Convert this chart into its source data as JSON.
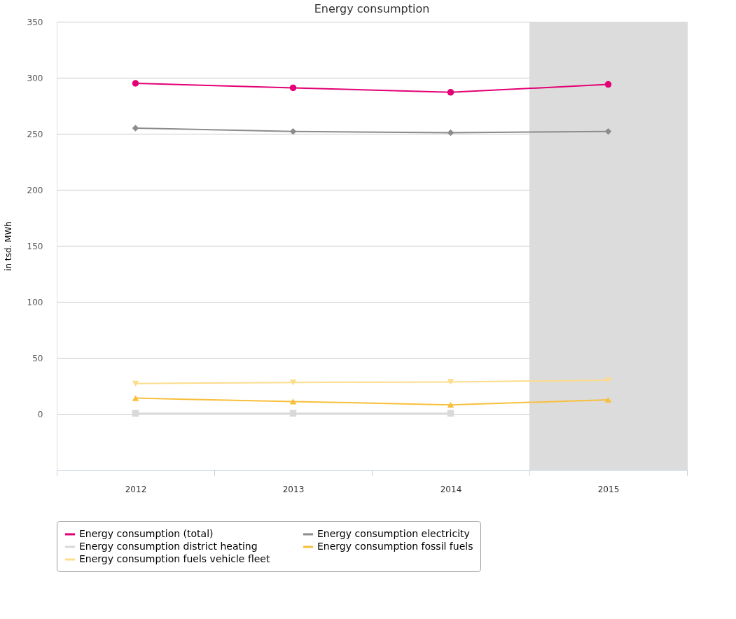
{
  "chart_data": {
    "type": "line",
    "title": "Energy consumption",
    "ylabel": "in tsd. MWh",
    "categories": [
      "2012",
      "2013",
      "2014",
      "2015"
    ],
    "series": [
      {
        "name": "Energy consumption (total)",
        "color": "#e20074",
        "marker": "circle",
        "values": [
          295,
          291,
          287,
          294
        ]
      },
      {
        "name": "Energy consumption electricity",
        "color": "#8c8c8c",
        "marker": "diamond",
        "values": [
          255,
          252,
          251,
          252
        ]
      },
      {
        "name": "Energy consumption district heating",
        "color": "#d9d9d9",
        "marker": "square",
        "values": [
          0.5,
          0.5,
          0.5,
          null
        ]
      },
      {
        "name": "Energy consumption fossil fuels",
        "color": "#f9bf3b",
        "marker": "triangle",
        "values": [
          14,
          11,
          8,
          12.5
        ]
      },
      {
        "name": "Energy consumption fuels vehicle fleet",
        "color": "#fddc8c",
        "marker": "triangle-down",
        "values": [
          27,
          28,
          28.5,
          30
        ]
      }
    ],
    "ylim": [
      -50,
      350
    ],
    "yticks": [
      0,
      50,
      100,
      150,
      200,
      250,
      300,
      350
    ],
    "bands": [
      {
        "axis": "x",
        "from": "2015",
        "to": "2015",
        "color": "#dcdcdc"
      }
    ],
    "grid": "y",
    "legend": "bottom"
  }
}
